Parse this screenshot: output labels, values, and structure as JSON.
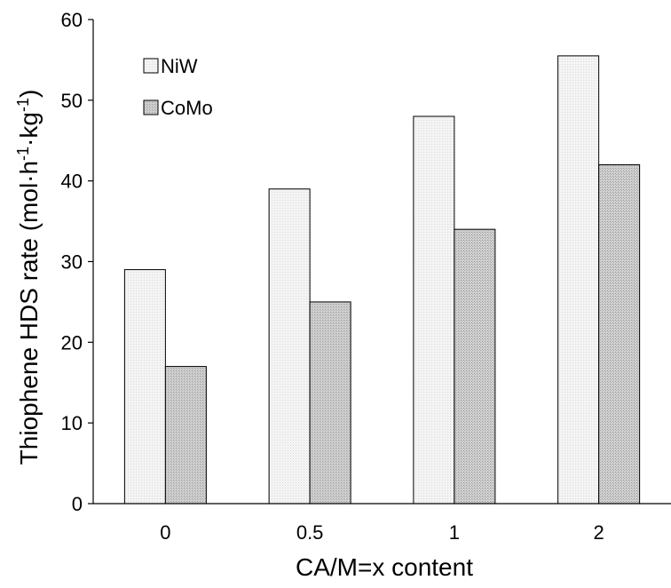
{
  "chart_data": {
    "type": "bar",
    "categories": [
      "0",
      "0.5",
      "1",
      "2"
    ],
    "series": [
      {
        "name": "NiW",
        "values": [
          29,
          39,
          48,
          55.5
        ],
        "color": "#f0f0f0"
      },
      {
        "name": "CoMo",
        "values": [
          17,
          25,
          34,
          42
        ],
        "color": "#c8c8c8"
      }
    ],
    "xlabel": "CA/M=x content",
    "ylabel": {
      "main": "Thiophene HDS rate (mol·h",
      "sup1": "-1",
      "mid": "·kg",
      "sup2": "-1",
      "end": ")"
    },
    "ylim": [
      0,
      60
    ],
    "yticks": [
      0,
      10,
      20,
      30,
      40,
      50,
      60
    ],
    "legend_position": "top-left",
    "grid": false
  }
}
